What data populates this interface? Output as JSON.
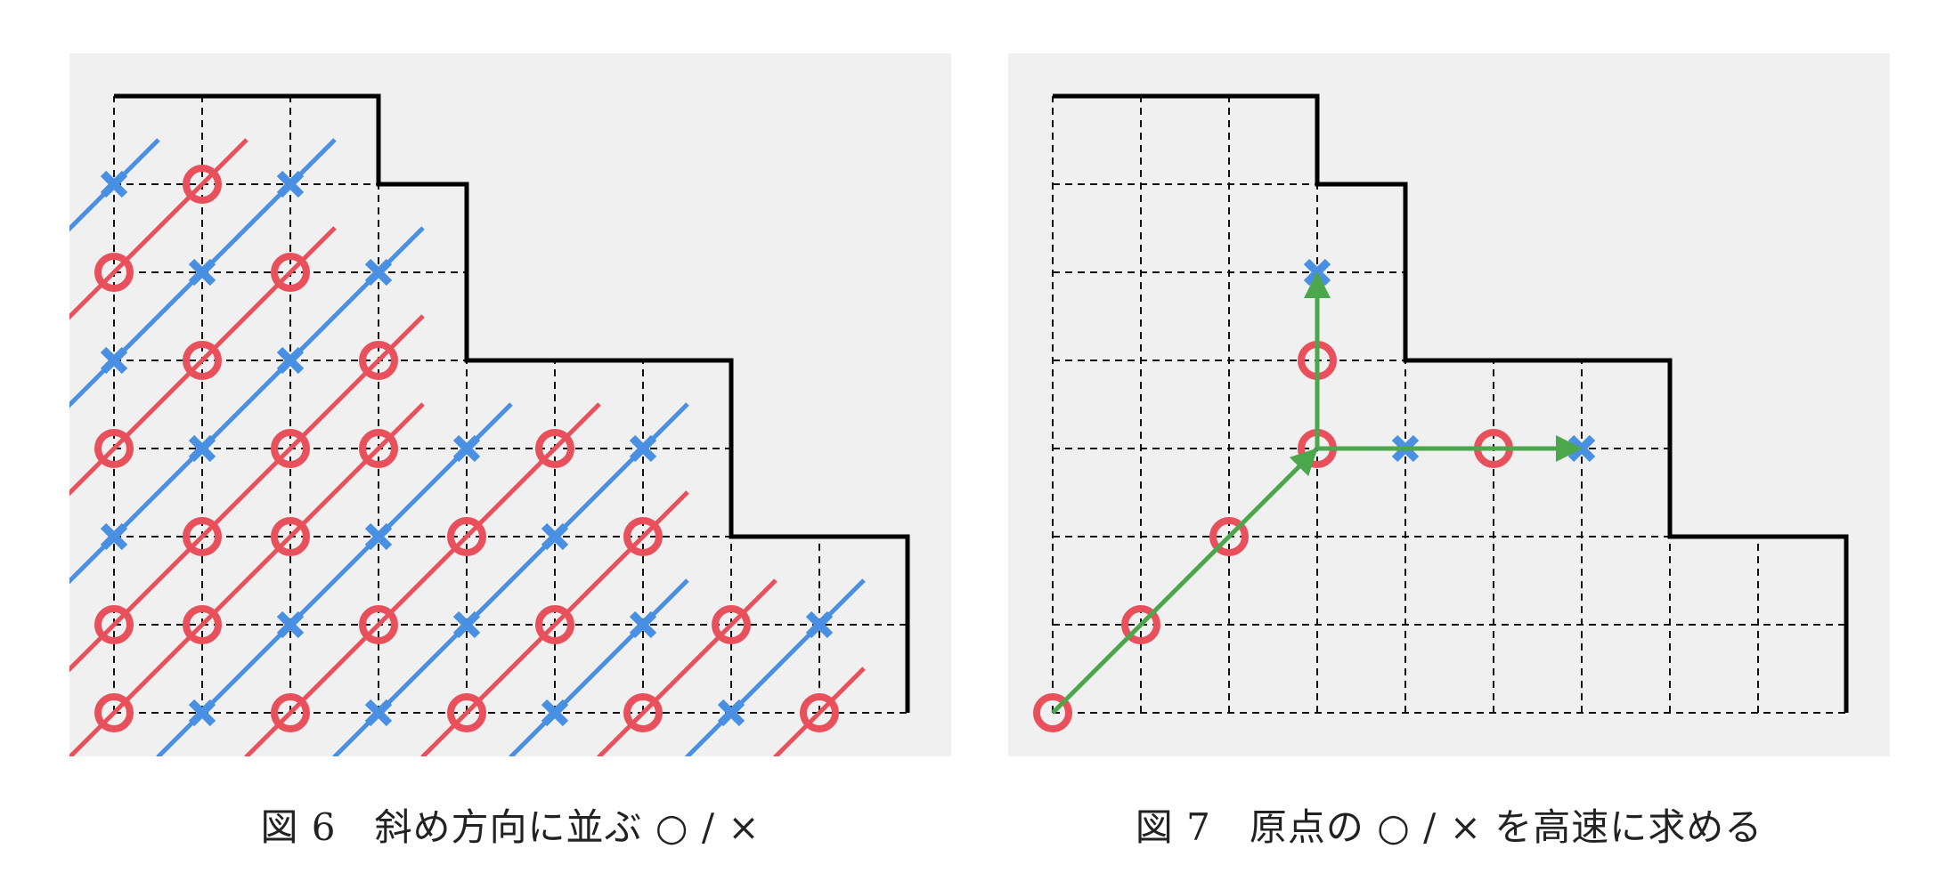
{
  "colors": {
    "o": "#e8505b",
    "x": "#4a90e2",
    "arrow": "#4ca64c",
    "grid": "#111111",
    "panel": "#f0f0f0"
  },
  "grid": {
    "rows_top_to_bottom": [
      3,
      4,
      4,
      7,
      7,
      9,
      9
    ],
    "columns_total": 9
  },
  "figure6": {
    "caption": "図 6　斜め方向に並ぶ ○ / ×",
    "rows_bottom_to_top": [
      [
        "O",
        "X",
        "O",
        "X",
        "O",
        "X",
        "O",
        "X",
        "O"
      ],
      [
        "O",
        "O",
        "X",
        "O",
        "X",
        "O",
        "X",
        "O",
        "X"
      ],
      [
        "X",
        "O",
        "O",
        "X",
        "O",
        "X",
        "O"
      ],
      [
        "O",
        "X",
        "O",
        "O",
        "X",
        "O",
        "X"
      ],
      [
        "X",
        "O",
        "X",
        "O"
      ],
      [
        "O",
        "X",
        "O",
        "X"
      ],
      [
        "X",
        "O",
        "X"
      ]
    ]
  },
  "figure7": {
    "caption": "図 7　原点の ○ / × を高速に求める",
    "marks": [
      {
        "col": 0,
        "row": 0,
        "type": "O"
      },
      {
        "col": 1,
        "row": 1,
        "type": "O"
      },
      {
        "col": 2,
        "row": 2,
        "type": "O"
      },
      {
        "col": 3,
        "row": 3,
        "type": "O"
      },
      {
        "col": 4,
        "row": 3,
        "type": "X"
      },
      {
        "col": 5,
        "row": 3,
        "type": "O"
      },
      {
        "col": 6,
        "row": 3,
        "type": "X"
      },
      {
        "col": 3,
        "row": 4,
        "type": "O"
      },
      {
        "col": 3,
        "row": 5,
        "type": "X"
      }
    ],
    "arrows": [
      {
        "from": [
          0,
          0
        ],
        "to": [
          3,
          3
        ]
      },
      {
        "from": [
          3,
          3
        ],
        "to": [
          6,
          3
        ]
      },
      {
        "from": [
          3,
          3
        ],
        "to": [
          3,
          5
        ]
      }
    ]
  }
}
